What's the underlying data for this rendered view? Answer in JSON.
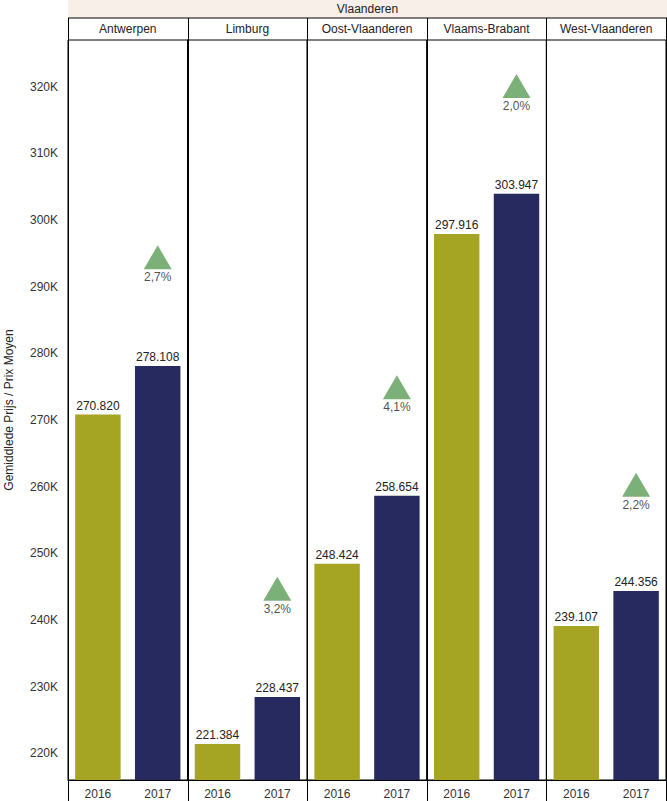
{
  "chart_data": {
    "type": "bar",
    "title": "Vlaanderen",
    "y_label": "Gemiddlede Prijs / Prix Moyen",
    "categories": [
      "2016",
      "2017"
    ],
    "colors": [
      "#a5a523",
      "#272a5e"
    ],
    "ylim": [
      216000,
      327000
    ],
    "yticks": [
      {
        "value": 220000,
        "label": "220K"
      },
      {
        "value": 230000,
        "label": "230K"
      },
      {
        "value": 240000,
        "label": "240K"
      },
      {
        "value": 250000,
        "label": "250K"
      },
      {
        "value": 260000,
        "label": "260K"
      },
      {
        "value": 270000,
        "label": "270K"
      },
      {
        "value": 280000,
        "label": "280K"
      },
      {
        "value": 290000,
        "label": "290K"
      },
      {
        "value": 300000,
        "label": "300K"
      },
      {
        "value": 310000,
        "label": "310K"
      },
      {
        "value": 320000,
        "label": "320K"
      }
    ],
    "grid": false,
    "data_labels": true,
    "facets": [
      {
        "title": "Antwerpen",
        "values": [
          270820,
          278108
        ],
        "value_labels": [
          "270.820",
          "278.108"
        ],
        "annotation": {
          "text": "2,7%",
          "x": "2017",
          "y": 294400,
          "marker": "triangle",
          "color": "#5a9e57"
        }
      },
      {
        "title": "Limburg",
        "values": [
          221384,
          228437
        ],
        "value_labels": [
          "221.384",
          "228.437"
        ],
        "annotation": {
          "text": "3,2%",
          "x": "2017",
          "y": 244700,
          "marker": "triangle",
          "color": "#5a9e57"
        }
      },
      {
        "title": "Oost-Vlaanderen",
        "values": [
          248424,
          258654
        ],
        "value_labels": [
          "248.424",
          "258.654"
        ],
        "annotation": {
          "text": "4,1%",
          "x": "2017",
          "y": 274900,
          "marker": "triangle",
          "color": "#5a9e57"
        }
      },
      {
        "title": "Vlaams-Brabant",
        "values": [
          297916,
          303947
        ],
        "value_labels": [
          "297.916",
          "303.947"
        ],
        "annotation": {
          "text": "2,0%",
          "x": "2017",
          "y": 320100,
          "marker": "triangle",
          "color": "#5a9e57"
        }
      },
      {
        "title": "West-Vlaanderen",
        "values": [
          239107,
          244356
        ],
        "value_labels": [
          "239.107",
          "244.356"
        ],
        "annotation": {
          "text": "2,2%",
          "x": "2017",
          "y": 260300,
          "marker": "triangle",
          "color": "#5a9e57"
        }
      }
    ]
  }
}
